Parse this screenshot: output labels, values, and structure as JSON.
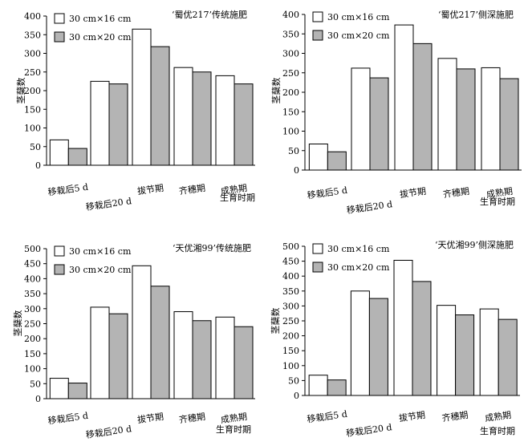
{
  "chart_data": [
    {
      "type": "bar",
      "title": "‘蜀优217’传统施肥",
      "ylabel": "茎蘖数",
      "xlabel": "生育时期",
      "categories": [
        "移栽后5 d",
        "移栽后20 d",
        "拔节期",
        "齐穗期",
        "成熟期"
      ],
      "ylim": [
        0,
        400
      ],
      "yticks": [
        0,
        50,
        100,
        150,
        200,
        250,
        300,
        350,
        400
      ],
      "legend_position": "top-left",
      "series": [
        {
          "name": "30 cm×16 cm",
          "color": "#ffffff",
          "values": [
            68,
            225,
            365,
            262,
            240
          ]
        },
        {
          "name": "30 cm×20 cm",
          "color": "#b4b4b4",
          "values": [
            45,
            218,
            318,
            250,
            218
          ]
        }
      ]
    },
    {
      "type": "bar",
      "title": "‘蜀优217’侧深施肥",
      "ylabel": "茎蘖数",
      "xlabel": "生育时期",
      "categories": [
        "移栽后5 d",
        "移栽后20 d",
        "拔节期",
        "齐穗期",
        "成熟期"
      ],
      "ylim": [
        0,
        400
      ],
      "yticks": [
        0,
        50,
        100,
        150,
        200,
        250,
        300,
        350,
        400
      ],
      "legend_position": "top-left",
      "series": [
        {
          "name": "30 cm×16 cm",
          "color": "#ffffff",
          "values": [
            67,
            262,
            373,
            287,
            263
          ]
        },
        {
          "name": "30 cm×20 cm",
          "color": "#b4b4b4",
          "values": [
            47,
            237,
            325,
            260,
            235
          ]
        }
      ]
    },
    {
      "type": "bar",
      "title": "‘天优湘99’传统施肥",
      "ylabel": "茎蘖数",
      "xlabel": "生育时期",
      "categories": [
        "移栽后5 d",
        "移栽后20 d",
        "拔节期",
        "齐穗期",
        "成熟期"
      ],
      "ylim": [
        0,
        500
      ],
      "yticks": [
        0,
        50,
        100,
        150,
        200,
        250,
        300,
        350,
        400,
        450,
        500
      ],
      "legend_position": "top-left",
      "series": [
        {
          "name": "30 cm×16 cm",
          "color": "#ffffff",
          "values": [
            68,
            305,
            443,
            290,
            272
          ]
        },
        {
          "name": "30 cm×20 cm",
          "color": "#b4b4b4",
          "values": [
            52,
            283,
            375,
            260,
            240
          ]
        }
      ]
    },
    {
      "type": "bar",
      "title": "‘天优湘99’侧深施肥",
      "ylabel": "茎蘖数",
      "xlabel": "生育时期",
      "categories": [
        "移栽后5 d",
        "移栽后20 d",
        "拔节期",
        "齐穗期",
        "成熟期"
      ],
      "ylim": [
        0,
        500
      ],
      "yticks": [
        0,
        50,
        100,
        150,
        200,
        250,
        300,
        350,
        400,
        450,
        500
      ],
      "legend_position": "top-left",
      "series": [
        {
          "name": "30 cm×16 cm",
          "color": "#ffffff",
          "values": [
            68,
            350,
            453,
            302,
            290
          ]
        },
        {
          "name": "30 cm×20 cm",
          "color": "#b4b4b4",
          "values": [
            52,
            325,
            382,
            270,
            255
          ]
        }
      ]
    }
  ]
}
